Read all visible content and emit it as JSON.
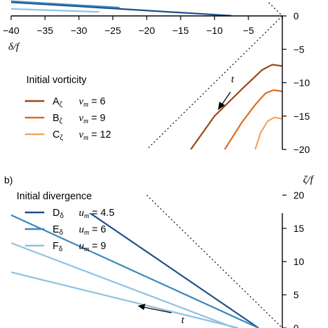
{
  "chart_data": [
    {
      "panel": "a",
      "type": "line",
      "xlabel": "δ/f",
      "ylabel": "",
      "xlim": [
        -40,
        0
      ],
      "ylim": [
        -20,
        0
      ],
      "xticks": [
        -40,
        -35,
        -30,
        -25,
        -20,
        -15,
        -10,
        -5,
        0
      ],
      "yticks": [
        0,
        -5,
        -10,
        -15,
        -20
      ],
      "legend_title": "Initial vorticity",
      "legend_placement": "center-left",
      "arrow_label": "t",
      "series": [
        {
          "name": "A",
          "sub": "ζ",
          "param": "v_m = 6",
          "color": "#9c4312",
          "points": [
            [
              -13.5,
              -20
            ],
            [
              -10,
              -15
            ],
            [
              -6,
              -11
            ],
            [
              -3,
              -8.1
            ],
            [
              -1.5,
              -7.3
            ],
            [
              0,
              -7.5
            ]
          ]
        },
        {
          "name": "B",
          "sub": "ζ",
          "param": "v_m = 9",
          "color": "#db6d20",
          "points": [
            [
              -8.5,
              -20
            ],
            [
              -6,
              -16
            ],
            [
              -4,
              -13.3
            ],
            [
              -2.5,
              -11.6
            ],
            [
              -1.3,
              -11.1
            ],
            [
              0,
              -11.3
            ]
          ]
        },
        {
          "name": "C",
          "sub": "ζ",
          "param": "v_m = 12",
          "color": "#f4a35f",
          "points": [
            [
              -4,
              -20
            ],
            [
              -3.2,
              -17.5
            ],
            [
              -2.2,
              -15.8
            ],
            [
              -1.2,
              -15.2
            ],
            [
              0,
              -15.4
            ]
          ]
        }
      ],
      "top_lines": [
        {
          "color": "#1c4e8b",
          "points": [
            [
              -40,
              2.05
            ],
            [
              -7.5,
              0.03
            ]
          ]
        },
        {
          "color": "#3a86bd",
          "points": [
            [
              -40,
              2.2
            ],
            [
              -24,
              1.25
            ]
          ]
        },
        {
          "color": "#8ec1e3",
          "points": [
            [
              -40,
              1.05
            ],
            [
              -27,
              0.6
            ]
          ]
        }
      ]
    },
    {
      "panel": "b",
      "type": "line",
      "xlabel": "",
      "ylabel": "ζ/f",
      "xlim": [
        -40,
        0
      ],
      "ylim": [
        0,
        20
      ],
      "yticks": [
        0,
        5,
        10,
        15,
        20
      ],
      "legend_title": "Initial divergence",
      "legend_placement": "top-left",
      "arrow_label": "t",
      "series": [
        {
          "name": "D",
          "sub": "δ",
          "param": "u_m = 4.5",
          "color": "#1c4e8b",
          "points": [
            [
              -40,
              25.4
            ],
            [
              -3.5,
              0
            ]
          ]
        },
        {
          "name": "E",
          "sub": "δ",
          "param": "u_m = 6",
          "color": "#3a86bd",
          "points": [
            [
              -40,
              17
            ],
            [
              -3.5,
              0
            ]
          ]
        },
        {
          "name": "F",
          "sub": "δ",
          "param": "u_m = 9",
          "color": "#8ec1e3",
          "points": [
            [
              -40,
              12.8
            ],
            [
              -7,
              0
            ]
          ]
        },
        {
          "name": "",
          "sub": "",
          "param": "",
          "color": "#8ec1e3",
          "points": [
            [
              -40,
              8.4
            ],
            [
              -6.5,
              0
            ]
          ]
        }
      ]
    }
  ],
  "text": {
    "panel_b_label": "b)",
    "ylabel_b": "ζ/f",
    "xlabel_a": "δ/f",
    "legend_a_title": "Initial vorticity",
    "legend_b_title": "Initial divergence",
    "t_a": "t",
    "t_b": "t",
    "leg_a": [
      {
        "main": "A",
        "sub": "ζ",
        "var": "v",
        "vsub": "m",
        "val": "= 6"
      },
      {
        "main": "B",
        "sub": "ζ",
        "var": "v",
        "vsub": "m",
        "val": "= 9"
      },
      {
        "main": "C",
        "sub": "ζ",
        "var": "v",
        "vsub": "m",
        "val": "= 12"
      }
    ],
    "leg_b": [
      {
        "main": "D",
        "sub": "δ",
        "var": "u",
        "vsub": "m",
        "val": "= 4.5"
      },
      {
        "main": "E",
        "sub": "δ",
        "var": "u",
        "vsub": "m",
        "val": "= 6"
      },
      {
        "main": "F",
        "sub": "δ",
        "var": "u",
        "vsub": "m",
        "val": "= 9"
      }
    ]
  }
}
